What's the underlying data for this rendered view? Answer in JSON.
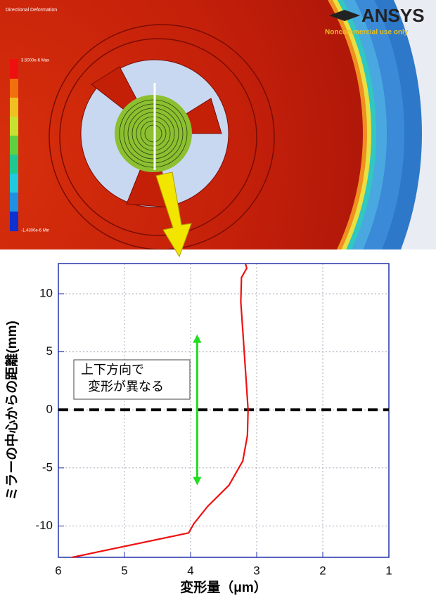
{
  "header": {
    "brand": "ANSYS",
    "license": "Noncommercial use only",
    "result": "Directional Deformation",
    "legend_max": "3.5000e-6 Max",
    "legend_min": "-1.4300e-6 Min"
  },
  "chart_data": {
    "type": "line",
    "x_label": "変形量（μm）",
    "y_label": "ミラーの中心からの距離(mm)",
    "annotation": "上下方向で\n変形が異なる",
    "xlim": [
      6,
      1
    ],
    "ylim": [
      -12.7,
      12.6
    ],
    "xticks": [
      6,
      5,
      4,
      3,
      2,
      1
    ],
    "yticks": [
      -10,
      -5,
      0,
      5,
      10
    ],
    "grid": true,
    "zero_line": 0,
    "arrow": {
      "x": 3.9,
      "y": [
        6.5,
        -6.5
      ],
      "color": "#22dd22"
    },
    "series": [
      {
        "color": "#ee1111",
        "x": [
          5.79,
          4.03,
          3.95,
          3.74,
          3.42,
          3.21,
          3.14,
          3.13,
          3.16,
          3.21,
          3.24,
          3.23,
          3.15,
          3.17
        ],
        "y": [
          -12.7,
          -10.6,
          -9.8,
          -8.3,
          -6.5,
          -4.4,
          -2.2,
          0,
          2.6,
          6.8,
          9.3,
          11.4,
          12.2,
          12.6
        ]
      }
    ]
  }
}
